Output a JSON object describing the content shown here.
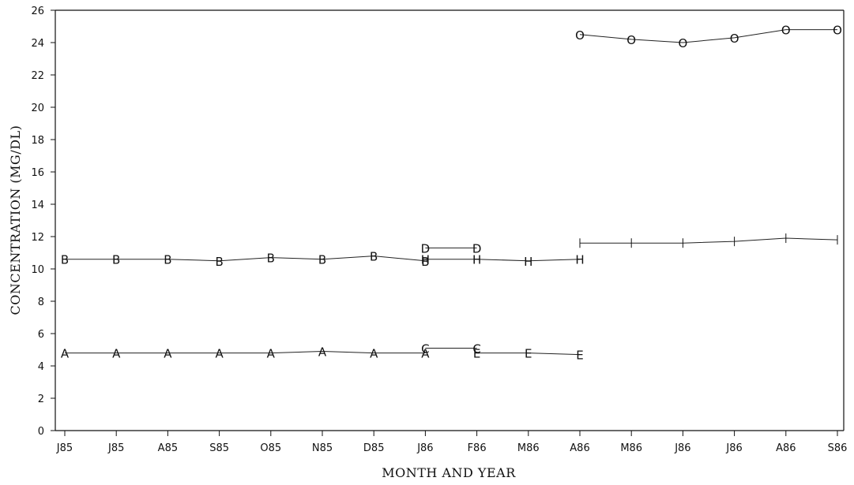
{
  "chart_data": {
    "type": "line",
    "title": "",
    "xlabel": "MONTH AND YEAR",
    "ylabel": "CONCENTRATION (MG/DL)",
    "ylim": [
      0,
      26
    ],
    "yticks": [
      0,
      2,
      4,
      6,
      8,
      10,
      12,
      14,
      16,
      18,
      20,
      22,
      24,
      26
    ],
    "categories": [
      "J85",
      "J85",
      "A85",
      "S85",
      "O85",
      "N85",
      "D85",
      "J86",
      "F86",
      "M86",
      "A86",
      "M86",
      "J86",
      "J86",
      "A86",
      "S86"
    ],
    "grid": false,
    "legend": "none",
    "series": [
      {
        "marker": "O",
        "points": [
          [
            10,
            24.5
          ],
          [
            11,
            24.2
          ],
          [
            12,
            24.0
          ],
          [
            13,
            24.3
          ],
          [
            14,
            24.8
          ],
          [
            15,
            24.8
          ]
        ]
      },
      {
        "marker": "I",
        "points": [
          [
            10,
            11.6
          ],
          [
            11,
            11.6
          ],
          [
            12,
            11.6
          ],
          [
            13,
            11.7
          ],
          [
            14,
            11.9
          ],
          [
            15,
            11.8
          ]
        ]
      },
      {
        "marker": "D",
        "points": [
          [
            7,
            11.3
          ],
          [
            8,
            11.3
          ]
        ]
      },
      {
        "marker": "B",
        "points": [
          [
            0,
            10.6
          ],
          [
            1,
            10.6
          ],
          [
            2,
            10.6
          ],
          [
            3,
            10.5
          ],
          [
            4,
            10.7
          ],
          [
            5,
            10.6
          ],
          [
            6,
            10.8
          ],
          [
            7,
            10.5
          ]
        ]
      },
      {
        "marker": "H",
        "points": [
          [
            7,
            10.6
          ],
          [
            8,
            10.6
          ],
          [
            9,
            10.5
          ],
          [
            10,
            10.6
          ]
        ]
      },
      {
        "marker": "C",
        "points": [
          [
            7,
            5.1
          ],
          [
            8,
            5.1
          ]
        ]
      },
      {
        "marker": "A",
        "points": [
          [
            0,
            4.8
          ],
          [
            1,
            4.8
          ],
          [
            2,
            4.8
          ],
          [
            3,
            4.8
          ],
          [
            4,
            4.8
          ],
          [
            5,
            4.9
          ],
          [
            6,
            4.8
          ],
          [
            7,
            4.8
          ]
        ]
      },
      {
        "marker": "E",
        "points": [
          [
            8,
            4.8
          ],
          [
            9,
            4.8
          ],
          [
            10,
            4.7
          ]
        ]
      }
    ]
  }
}
